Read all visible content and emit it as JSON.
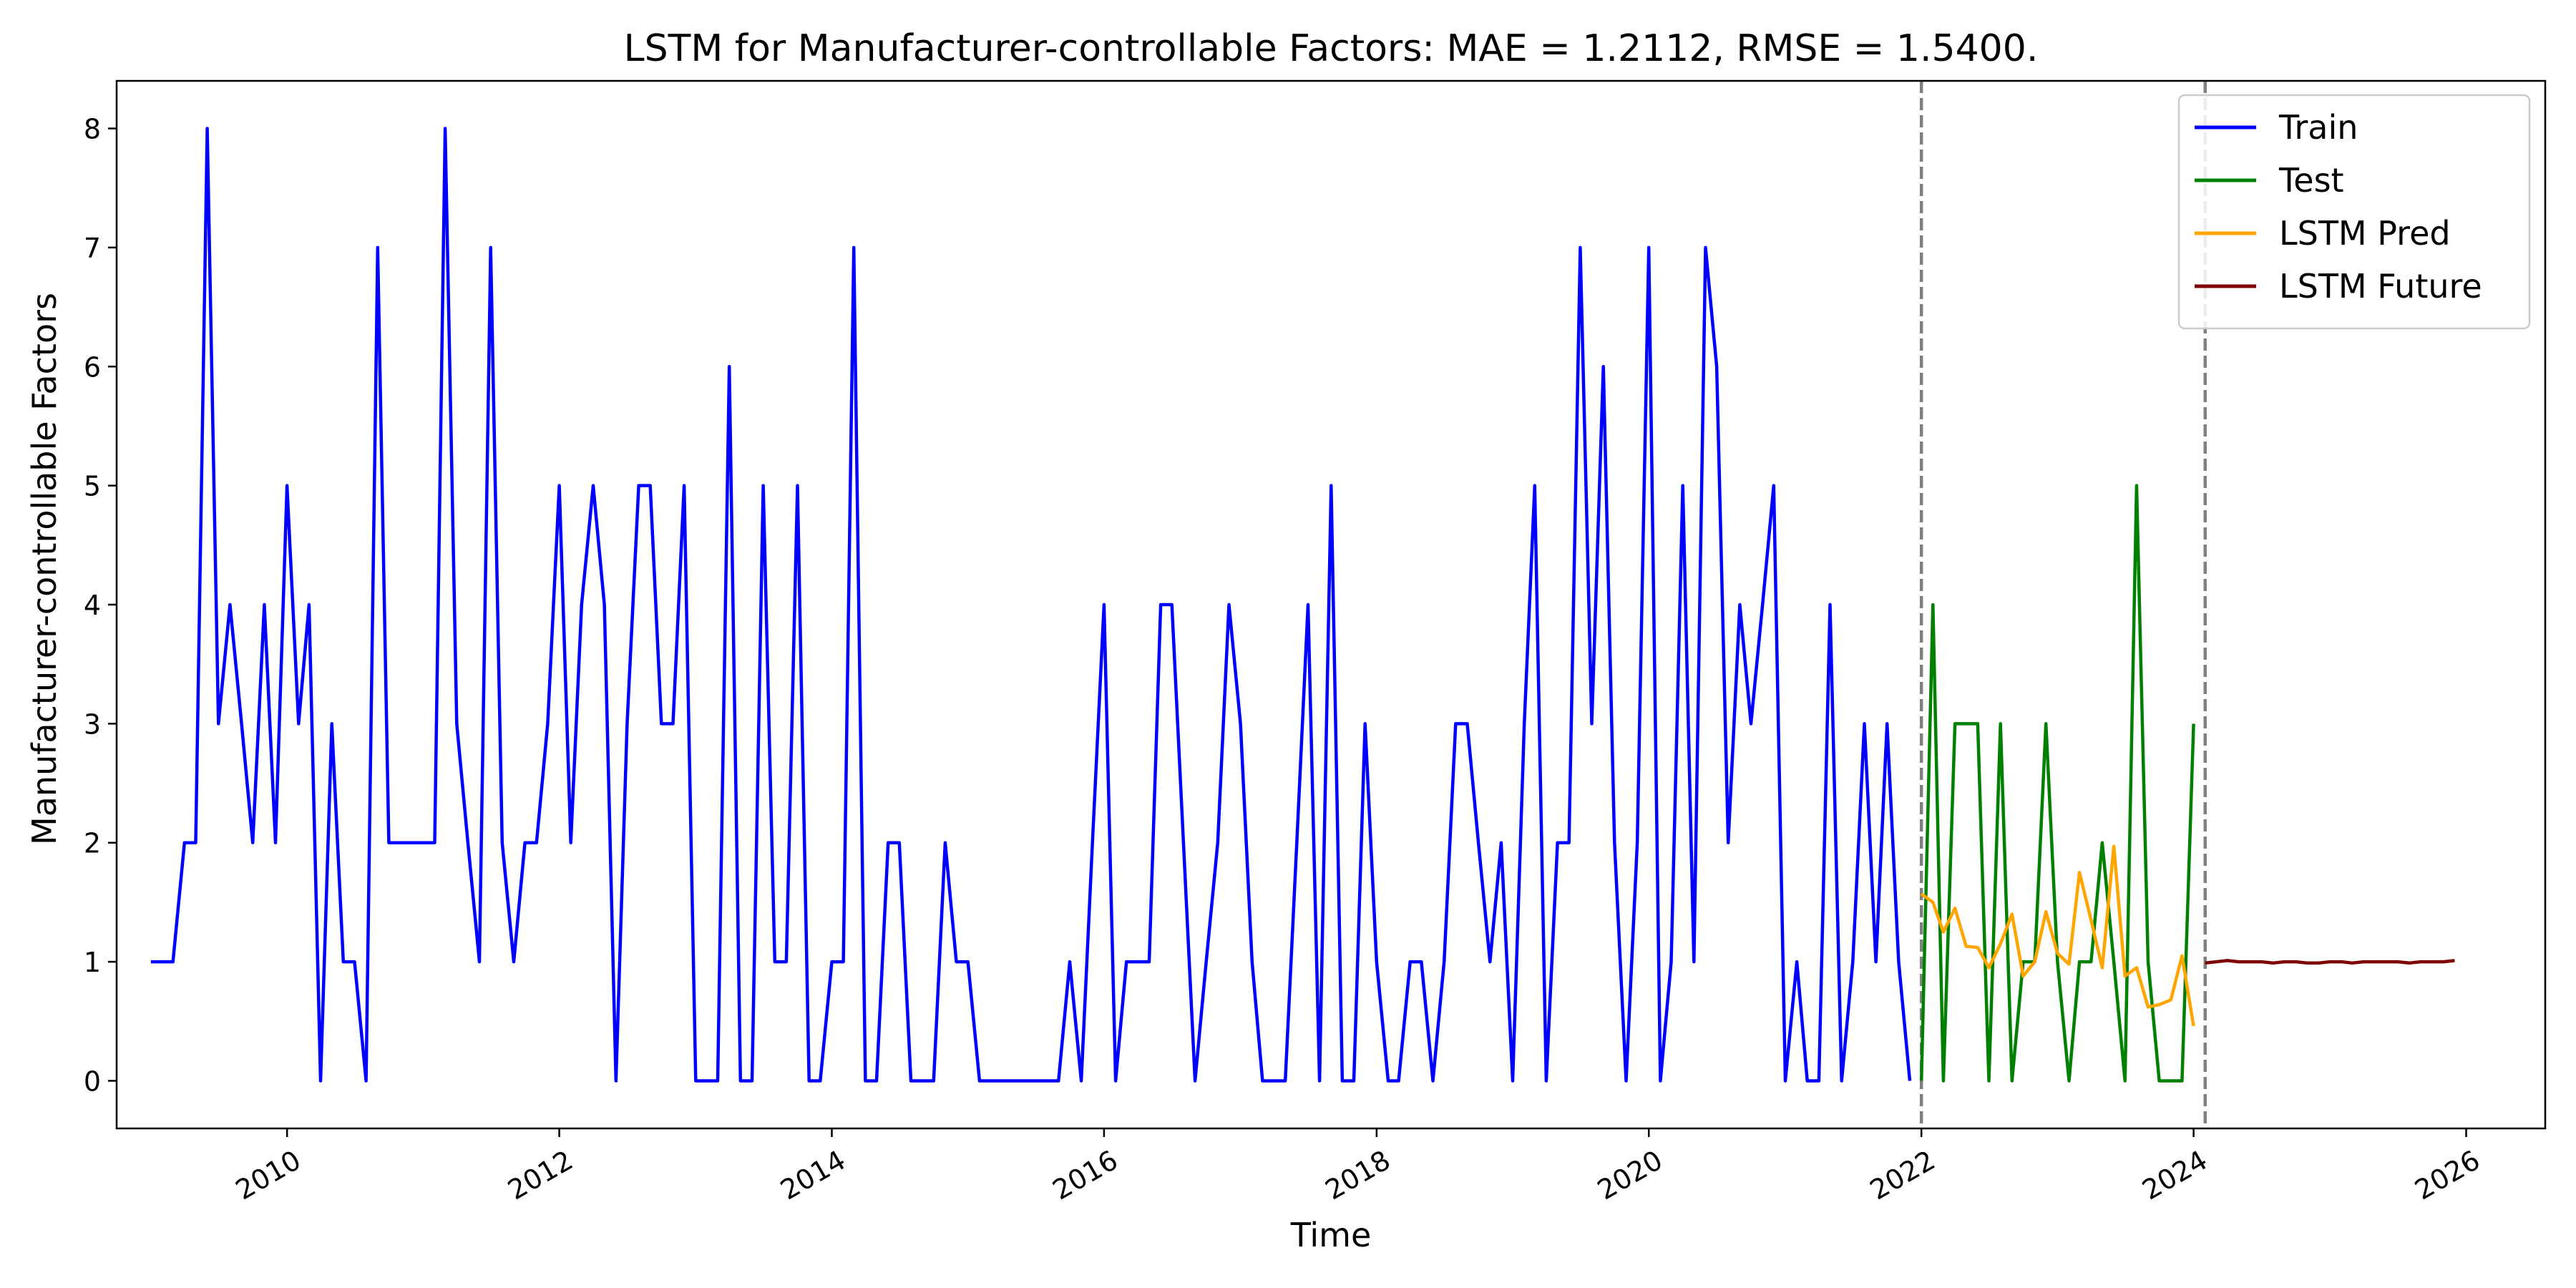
{
  "chart_data": {
    "type": "line",
    "title": "LSTM for Manufacturer-controllable Factors: MAE = 1.2112, RMSE = 1.5400.",
    "xlabel": "Time",
    "ylabel": "Manufacturer-controllable Factors",
    "xlim": [
      "2008-10-01",
      "2026-08-01"
    ],
    "ylim": [
      -0.4,
      8.4
    ],
    "x_ticks": [
      "2010",
      "2012",
      "2014",
      "2016",
      "2018",
      "2020",
      "2022",
      "2024",
      "2026"
    ],
    "y_ticks": [
      "0",
      "1",
      "2",
      "3",
      "4",
      "5",
      "6",
      "7",
      "8"
    ],
    "grid": false,
    "legend_position": "top-right",
    "vlines": [
      "2022-01-01",
      "2024-02-01"
    ],
    "series": [
      {
        "name": "Train",
        "color": "#0000ff",
        "x": [
          "2009-01-01",
          "2009-02-01",
          "2009-03-01",
          "2009-04-01",
          "2009-05-01",
          "2009-06-01",
          "2009-07-01",
          "2009-08-01",
          "2009-09-01",
          "2009-10-01",
          "2009-11-01",
          "2009-12-01",
          "2010-01-01",
          "2010-02-01",
          "2010-03-01",
          "2010-04-01",
          "2010-05-01",
          "2010-06-01",
          "2010-07-01",
          "2010-08-01",
          "2010-09-01",
          "2010-10-01",
          "2010-11-01",
          "2010-12-01",
          "2011-01-01",
          "2011-02-01",
          "2011-03-01",
          "2011-04-01",
          "2011-05-01",
          "2011-06-01",
          "2011-07-01",
          "2011-08-01",
          "2011-09-01",
          "2011-10-01",
          "2011-11-01",
          "2011-12-01",
          "2012-01-01",
          "2012-02-01",
          "2012-03-01",
          "2012-04-01",
          "2012-05-01",
          "2012-06-01",
          "2012-07-01",
          "2012-08-01",
          "2012-09-01",
          "2012-10-01",
          "2012-11-01",
          "2012-12-01",
          "2013-01-01",
          "2013-02-01",
          "2013-03-01",
          "2013-04-01",
          "2013-05-01",
          "2013-06-01",
          "2013-07-01",
          "2013-08-01",
          "2013-09-01",
          "2013-10-01",
          "2013-11-01",
          "2013-12-01",
          "2014-01-01",
          "2014-02-01",
          "2014-03-01",
          "2014-04-01",
          "2014-05-01",
          "2014-06-01",
          "2014-07-01",
          "2014-08-01",
          "2014-09-01",
          "2014-10-01",
          "2014-11-01",
          "2014-12-01",
          "2015-01-01",
          "2015-02-01",
          "2015-03-01",
          "2015-04-01",
          "2015-05-01",
          "2015-06-01",
          "2015-07-01",
          "2015-08-01",
          "2015-09-01",
          "2015-10-01",
          "2015-11-01",
          "2015-12-01",
          "2016-01-01",
          "2016-02-01",
          "2016-03-01",
          "2016-04-01",
          "2016-05-01",
          "2016-06-01",
          "2016-07-01",
          "2016-08-01",
          "2016-09-01",
          "2016-10-01",
          "2016-11-01",
          "2016-12-01",
          "2017-01-01",
          "2017-02-01",
          "2017-03-01",
          "2017-04-01",
          "2017-05-01",
          "2017-06-01",
          "2017-07-01",
          "2017-08-01",
          "2017-09-01",
          "2017-10-01",
          "2017-11-01",
          "2017-12-01",
          "2018-01-01",
          "2018-02-01",
          "2018-03-01",
          "2018-04-01",
          "2018-05-01",
          "2018-06-01",
          "2018-07-01",
          "2018-08-01",
          "2018-09-01",
          "2018-10-01",
          "2018-11-01",
          "2018-12-01",
          "2019-01-01",
          "2019-02-01",
          "2019-03-01",
          "2019-04-01",
          "2019-05-01",
          "2019-06-01",
          "2019-07-01",
          "2019-08-01",
          "2019-09-01",
          "2019-10-01",
          "2019-11-01",
          "2019-12-01",
          "2020-01-01",
          "2020-02-01",
          "2020-03-01",
          "2020-04-01",
          "2020-05-01",
          "2020-06-01",
          "2020-07-01",
          "2020-08-01",
          "2020-09-01",
          "2020-10-01",
          "2020-11-01",
          "2020-12-01",
          "2021-01-01",
          "2021-02-01",
          "2021-03-01",
          "2021-04-01",
          "2021-05-01",
          "2021-06-01",
          "2021-07-01",
          "2021-08-01",
          "2021-09-01",
          "2021-10-01",
          "2021-11-01",
          "2021-12-01"
        ],
        "y": [
          1,
          1,
          1,
          2,
          2,
          8,
          3,
          4,
          3,
          2,
          4,
          2,
          5,
          3,
          4,
          0,
          3,
          1,
          1,
          0,
          7,
          2,
          2,
          2,
          2,
          2,
          8,
          3,
          2,
          1,
          7,
          2,
          1,
          2,
          2,
          3,
          5,
          2,
          4,
          5,
          4,
          0,
          3,
          5,
          5,
          3,
          3,
          5,
          0,
          0,
          0,
          6,
          0,
          0,
          5,
          1,
          1,
          5,
          0,
          0,
          1,
          1,
          7,
          0,
          0,
          2,
          2,
          0,
          0,
          0,
          2,
          1,
          1,
          0,
          0,
          0,
          0,
          0,
          0,
          0,
          0,
          1,
          0,
          2,
          4,
          0,
          1,
          1,
          1,
          4,
          4,
          2,
          0,
          1,
          2,
          4,
          3,
          1,
          0,
          0,
          0,
          2,
          4,
          0,
          5,
          0,
          0,
          3,
          1,
          0,
          0,
          1,
          1,
          0,
          1,
          3,
          3,
          2,
          1,
          2,
          0,
          3,
          5,
          0,
          2,
          2,
          7,
          3,
          6,
          2,
          0,
          2,
          7,
          0,
          1,
          5,
          1,
          7,
          6,
          2,
          4,
          3,
          4,
          5,
          0,
          1,
          0,
          0,
          4,
          0,
          1,
          3,
          1,
          3,
          1,
          0
        ]
      },
      {
        "name": "Test",
        "color": "#008000",
        "x": [
          "2022-01-01",
          "2022-02-01",
          "2022-03-01",
          "2022-04-01",
          "2022-05-01",
          "2022-06-01",
          "2022-07-01",
          "2022-08-01",
          "2022-09-01",
          "2022-10-01",
          "2022-11-01",
          "2022-12-01",
          "2023-01-01",
          "2023-02-01",
          "2023-03-01",
          "2023-04-01",
          "2023-05-01",
          "2023-06-01",
          "2023-07-01",
          "2023-08-01",
          "2023-09-01",
          "2023-10-01",
          "2023-11-01",
          "2023-12-01",
          "2024-01-01"
        ],
        "y": [
          0,
          4,
          0,
          3,
          3,
          3,
          0,
          3,
          0,
          1,
          1,
          3,
          1,
          0,
          1,
          1,
          2,
          1,
          0,
          5,
          1,
          0,
          0,
          0,
          3
        ]
      },
      {
        "name": "LSTM Pred",
        "color": "#ffa500",
        "x": [
          "2022-01-01",
          "2022-02-01",
          "2022-03-01",
          "2022-04-01",
          "2022-05-01",
          "2022-06-01",
          "2022-07-01",
          "2022-08-01",
          "2022-09-01",
          "2022-10-01",
          "2022-11-01",
          "2022-12-01",
          "2023-01-01",
          "2023-02-01",
          "2023-03-01",
          "2023-04-01",
          "2023-05-01",
          "2023-06-01",
          "2023-07-01",
          "2023-08-01",
          "2023-09-01",
          "2023-10-01",
          "2023-11-01",
          "2023-12-01",
          "2024-01-01"
        ],
        "y": [
          1.57,
          1.5,
          1.25,
          1.45,
          1.13,
          1.12,
          0.95,
          1.15,
          1.4,
          0.88,
          1.0,
          1.42,
          1.07,
          0.98,
          1.75,
          1.35,
          0.95,
          1.97,
          0.88,
          0.95,
          0.62,
          0.64,
          0.68,
          1.05,
          0.46
        ]
      },
      {
        "name": "LSTM Future",
        "color": "#800000",
        "x": [
          "2024-02-01",
          "2024-03-01",
          "2024-04-01",
          "2024-05-01",
          "2024-06-01",
          "2024-07-01",
          "2024-08-01",
          "2024-09-01",
          "2024-10-01",
          "2024-11-01",
          "2024-12-01",
          "2025-01-01",
          "2025-02-01",
          "2025-03-01",
          "2025-04-01",
          "2025-05-01",
          "2025-06-01",
          "2025-07-01",
          "2025-08-01",
          "2025-09-01",
          "2025-10-01",
          "2025-11-01",
          "2025-12-01"
        ],
        "y": [
          0.99,
          1.0,
          1.01,
          1.0,
          1.0,
          1.0,
          0.99,
          1.0,
          1.0,
          0.99,
          0.99,
          1.0,
          1.0,
          0.99,
          1.0,
          1.0,
          1.0,
          1.0,
          0.99,
          1.0,
          1.0,
          1.0,
          1.01
        ]
      }
    ]
  }
}
